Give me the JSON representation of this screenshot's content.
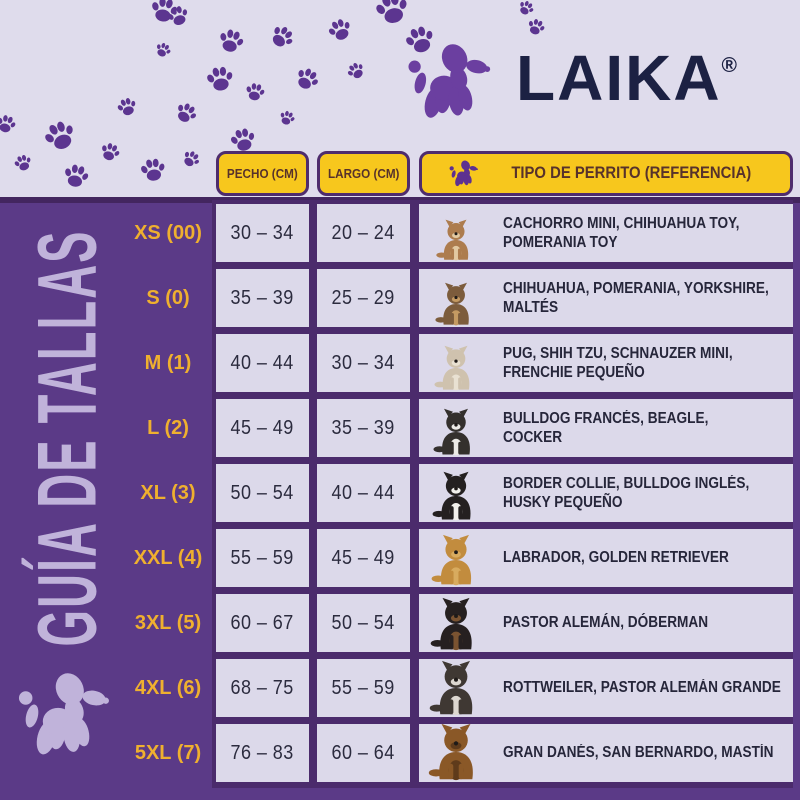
{
  "brand": {
    "logo_text": "LAIKA",
    "registered_mark": "®",
    "logo_icon": "balloon-dog-icon"
  },
  "sidebar": {
    "title": "GUÍA DE TALLAS",
    "mascot_icon": "balloon-dog-icon"
  },
  "table": {
    "header": {
      "chest": "PECHO (CM)",
      "length": "LARGO (CM)",
      "reference": "TIPO DE PERRITO (REFERENCIA)",
      "reference_icon": "balloon-dog-icon"
    },
    "rows": [
      {
        "size": "XS (00)",
        "chest": "30 – 34",
        "length": "20 – 24",
        "breeds_lines": [
          "CACHORRO MINI, CHIHUAHUA TOY,",
          "POMERANIA TOY"
        ],
        "dog_icon": "chihuahua-dog-image",
        "dog_colors": {
          "body": "#ad7c4e",
          "chest": "#e2c9a2"
        }
      },
      {
        "size": "S (0)",
        "chest": "35 – 39",
        "length": "25 – 29",
        "breeds_lines": [
          "CHIHUAHUA, POMERANIA, YORKSHIRE,",
          "MALTÉS"
        ],
        "dog_icon": "yorkshire-dog-image",
        "dog_colors": {
          "body": "#7c5c3c",
          "chest": "#c49a62"
        }
      },
      {
        "size": "M (1)",
        "chest": "40 – 44",
        "length": "30 – 34",
        "breeds_lines": [
          "PUG, SHIH TZU, SCHNAUZER MINI,",
          "FRENCHIE PEQUEÑO"
        ],
        "dog_icon": "shih-tzu-dog-image",
        "dog_colors": {
          "body": "#cfc2ae",
          "chest": "#e9e1d2"
        }
      },
      {
        "size": "L (2)",
        "chest": "45 – 49",
        "length": "35 – 39",
        "breeds_lines": [
          "BULLDOG FRANCÉS, BEAGLE,",
          "COCKER"
        ],
        "dog_icon": "french-bulldog-dog-image",
        "dog_colors": {
          "body": "#34302d",
          "chest": "#eceae6"
        }
      },
      {
        "size": "XL (3)",
        "chest": "50 – 54",
        "length": "40 – 44",
        "breeds_lines": [
          "BORDER COLLIE, BULLDOG INGLÉS,",
          "HUSKY PEQUEÑO"
        ],
        "dog_icon": "border-collie-dog-image",
        "dog_colors": {
          "body": "#242020",
          "chest": "#f2f0ec"
        }
      },
      {
        "size": "XXL (4)",
        "chest": "55 – 59",
        "length": "45 – 49",
        "breeds_lines": [
          "LABRADOR, GOLDEN RETRIEVER"
        ],
        "dog_icon": "golden-retriever-dog-image",
        "dog_colors": {
          "body": "#c28c3e",
          "chest": "#d8ab5f"
        }
      },
      {
        "size": "3XL (5)",
        "chest": "60 – 67",
        "length": "50 – 54",
        "breeds_lines": [
          "PASTOR ALEMÁN, DÓBERMAN"
        ],
        "dog_icon": "doberman-dog-image",
        "dog_colors": {
          "body": "#262020",
          "chest": "#7a5331"
        }
      },
      {
        "size": "4XL (6)",
        "chest": "68 – 75",
        "length": "55 – 59",
        "breeds_lines": [
          "ROTTWEILER, PASTOR ALEMÁN GRANDE"
        ],
        "dog_icon": "rottweiler-dog-image",
        "dog_colors": {
          "body": "#3f3833",
          "chest": "#ddd7d0"
        }
      },
      {
        "size": "5XL (7)",
        "chest": "76 – 83",
        "length": "60 – 64",
        "breeds_lines": [
          "GRAN DANÉS, SAN BERNARDO, MASTÍN"
        ],
        "dog_icon": "mastiff-dog-image",
        "dog_colors": {
          "body": "#8a5827",
          "chest": "#5f3b1b"
        }
      }
    ]
  },
  "colors": {
    "page_background": "#dfdcec",
    "panel_purple": "#5b3a87",
    "table_backdrop_purple": "#4b2b6c",
    "cell_background": "#dcd9ea",
    "header_yellow": "#f7c71d",
    "header_border_purple": "#4e2c6d",
    "header_text": "#57322b",
    "size_label_gold": "#efb02f",
    "dark_text": "#26263a",
    "brand_navy": "#1c2143",
    "brand_purple": "#6b3fa0",
    "light_lavender_accent": "#c0b3da",
    "paw_purple": "#5c3590"
  }
}
